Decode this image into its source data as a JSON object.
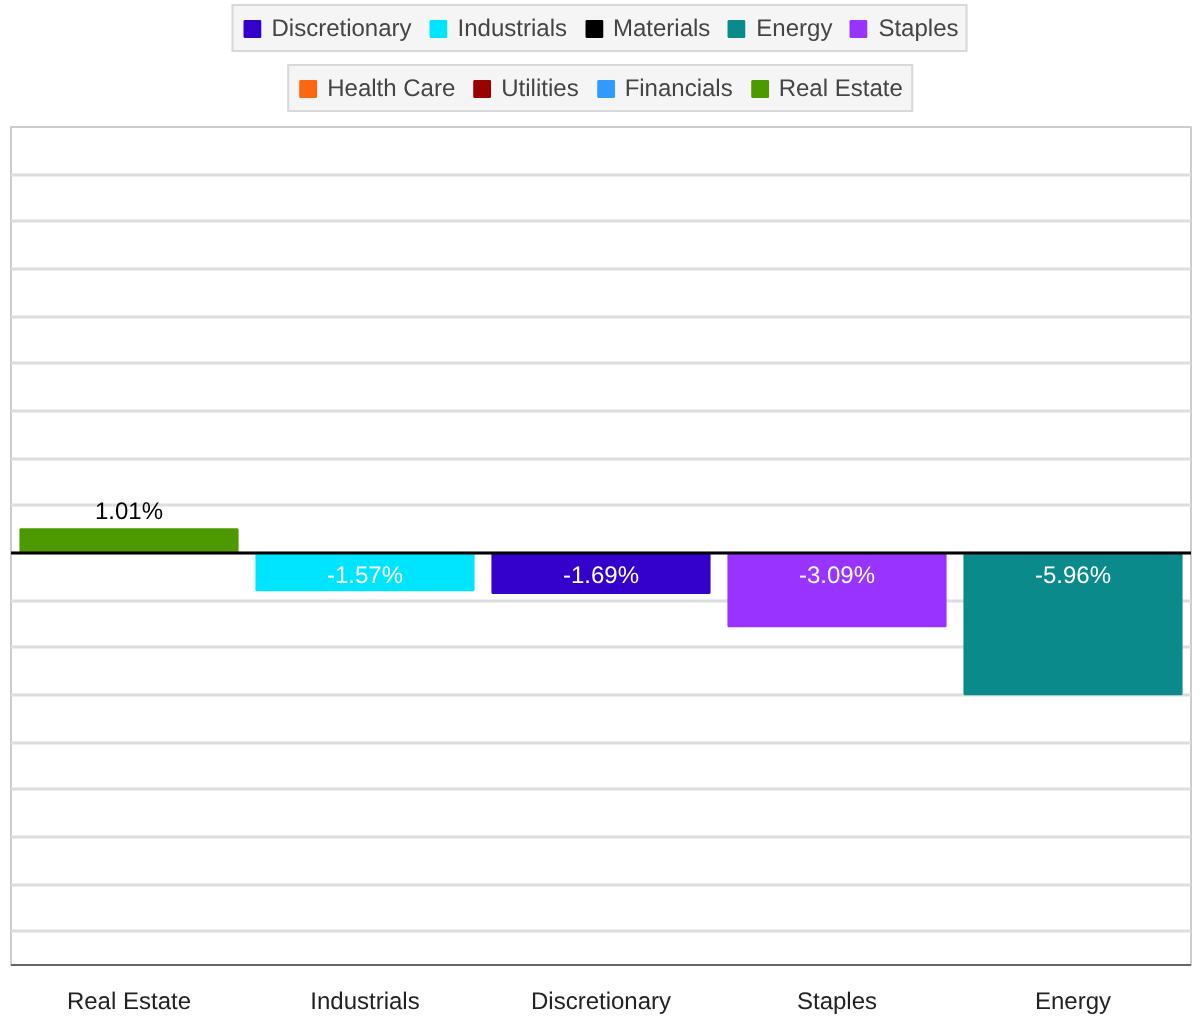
{
  "chart_data": {
    "type": "bar",
    "categories": [
      "Real Estate",
      "Industrials",
      "Discretionary",
      "Staples",
      "Energy"
    ],
    "series": [
      {
        "name": "Discretionary",
        "color": "#3300cc",
        "values": [
          null,
          null,
          -1.69,
          null,
          null
        ],
        "value_labels": [
          null,
          null,
          "-1.69%",
          null,
          null
        ]
      },
      {
        "name": "Industrials",
        "color": "#00e5ff",
        "values": [
          null,
          -1.57,
          null,
          null,
          null
        ],
        "value_labels": [
          null,
          "-1.57%",
          null,
          null,
          null
        ]
      },
      {
        "name": "Materials",
        "color": "#000000",
        "values": [
          null,
          null,
          null,
          null,
          null
        ]
      },
      {
        "name": "Energy",
        "color": "#0a8a8a",
        "values": [
          null,
          null,
          null,
          null,
          -5.96
        ],
        "value_labels": [
          null,
          null,
          null,
          null,
          "-5.96%"
        ]
      },
      {
        "name": "Staples",
        "color": "#9933ff",
        "values": [
          null,
          null,
          null,
          -3.09,
          null
        ],
        "value_labels": [
          null,
          null,
          null,
          "-3.09%",
          null
        ]
      },
      {
        "name": "Health Care",
        "color": "#ff6611",
        "values": [
          null,
          null,
          null,
          null,
          null
        ]
      },
      {
        "name": "Utilities",
        "color": "#990000",
        "values": [
          null,
          null,
          null,
          null,
          null
        ]
      },
      {
        "name": "Financials",
        "color": "#3399ff",
        "values": [
          null,
          null,
          null,
          null,
          null
        ]
      },
      {
        "name": "Real Estate",
        "color": "#4c9900",
        "values": [
          1.01,
          null,
          null,
          null,
          null
        ],
        "value_labels": [
          "1.01%",
          null,
          null,
          null,
          null
        ]
      }
    ],
    "ylim": [
      -17.4,
      18
    ],
    "yticks": [
      {
        "value": -16,
        "label": null
      },
      {
        "value": -14,
        "label": null
      },
      {
        "value": -12,
        "label": null
      },
      {
        "value": -10,
        "label": null
      },
      {
        "value": -8,
        "label": null
      },
      {
        "value": -6,
        "label": null
      },
      {
        "value": -4,
        "label": null
      },
      {
        "value": -2,
        "label": null
      },
      {
        "value": 0,
        "label": null
      },
      {
        "value": 2,
        "label": null
      },
      {
        "value": 4,
        "label": null
      },
      {
        "value": 6,
        "label": null
      },
      {
        "value": 8,
        "label": null
      },
      {
        "value": 10,
        "label": null
      },
      {
        "value": 12,
        "label": null
      },
      {
        "value": 14,
        "label": null
      },
      {
        "value": 16,
        "label": null
      }
    ],
    "ref_lines": [
      {
        "axis": "y",
        "value": 0,
        "color": "#000000"
      }
    ],
    "grid": "y",
    "legend": "top",
    "tick_labels": "x"
  }
}
